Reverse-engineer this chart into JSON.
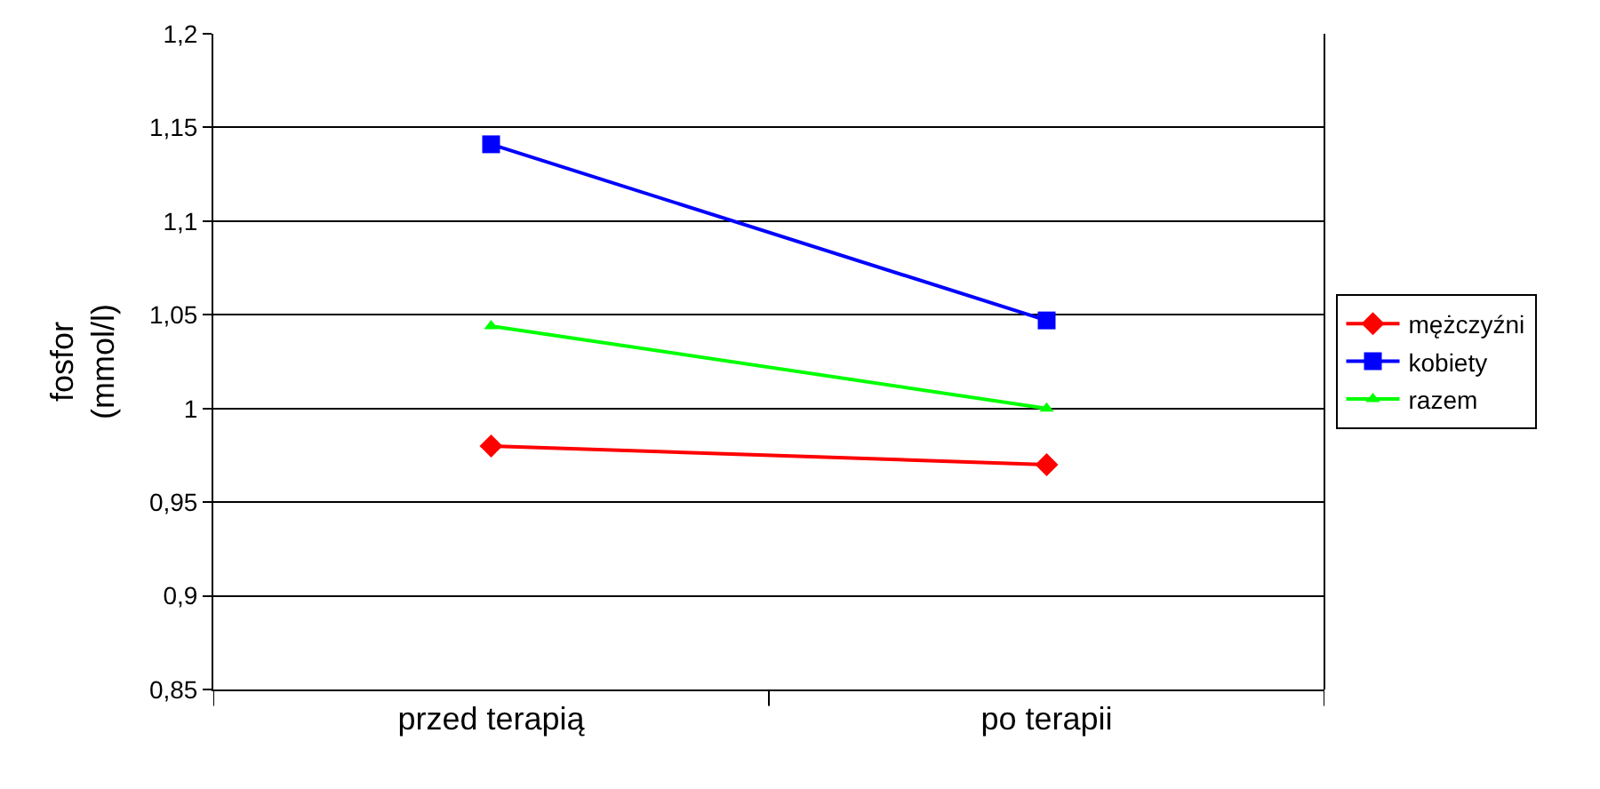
{
  "chart_data": {
    "type": "line",
    "ylabel": "fosfor\n(mmol/l)",
    "categories": [
      "przed terapią",
      "po terapii"
    ],
    "series": [
      {
        "name": "mężczyźni",
        "color": "#ff0000",
        "marker": "diamond",
        "values": [
          0.98,
          0.97
        ]
      },
      {
        "name": "kobiety",
        "color": "#0000ff",
        "marker": "square",
        "values": [
          1.141,
          1.047
        ]
      },
      {
        "name": "razem",
        "color": "#00ff00",
        "marker": "triangle",
        "values": [
          1.044,
          1.0
        ]
      }
    ],
    "ylim": [
      0.85,
      1.2
    ],
    "yticks": [
      {
        "value": 0.85,
        "label": "0,85"
      },
      {
        "value": 0.9,
        "label": "0,9"
      },
      {
        "value": 0.95,
        "label": "0,95"
      },
      1,
      {
        "value": 1.05,
        "label": "1,05"
      },
      {
        "value": 1.1,
        "label": "1,1"
      },
      {
        "value": 1.15,
        "label": "1,15"
      },
      {
        "value": 1.2,
        "label": "1,2"
      }
    ],
    "grid": "y",
    "legend": "right"
  }
}
